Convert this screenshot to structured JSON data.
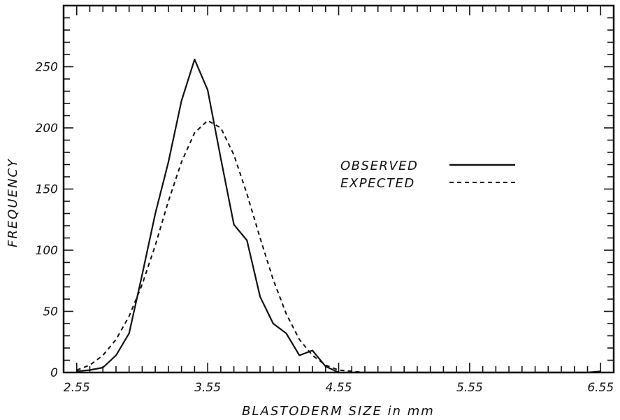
{
  "chart_data": {
    "type": "line",
    "title": "",
    "xlabel": "BLASTODERM SIZE  in mm",
    "ylabel": "FREQUENCY",
    "xlim": [
      2.45,
      6.65
    ],
    "ylim": [
      0,
      300
    ],
    "x_ticks": [
      2.55,
      3.55,
      4.55,
      5.55,
      6.55
    ],
    "x_tick_labels": [
      "2.55",
      "3.55",
      "4.55",
      "5.55",
      "6.55"
    ],
    "y_ticks": [
      0,
      50,
      100,
      150,
      200,
      250
    ],
    "y_tick_labels": [
      "0",
      "50",
      "100",
      "150",
      "200",
      "250"
    ],
    "x_minor_step": 0.1,
    "y_minor_step": 10,
    "grid": false,
    "legend_position": "right-middle",
    "series": [
      {
        "name": "OBSERVED",
        "style": "solid",
        "x": [
          2.55,
          2.65,
          2.75,
          2.85,
          2.95,
          3.05,
          3.15,
          3.25,
          3.35,
          3.45,
          3.55,
          3.65,
          3.75,
          3.85,
          3.95,
          4.05,
          4.15,
          4.25,
          4.35,
          4.45,
          4.55,
          4.65,
          4.75,
          4.85,
          4.95,
          5.05,
          5.15,
          5.25,
          5.35,
          5.45,
          5.55,
          5.65,
          5.75,
          5.85,
          5.95,
          6.05,
          6.15,
          6.25,
          6.35,
          6.45,
          6.55
        ],
        "y": [
          1,
          2,
          4,
          14,
          32,
          80,
          130,
          172,
          222,
          256,
          231,
          175,
          121,
          108,
          62,
          40,
          32,
          14,
          18,
          5,
          0,
          0,
          0,
          0,
          0,
          0,
          0,
          0,
          0,
          0,
          0,
          0,
          0,
          0,
          0,
          0,
          0,
          0,
          0,
          0,
          1
        ]
      },
      {
        "name": "EXPECTED",
        "style": "dashed",
        "x": [
          2.55,
          2.65,
          2.75,
          2.85,
          2.95,
          3.05,
          3.15,
          3.25,
          3.35,
          3.45,
          3.55,
          3.65,
          3.75,
          3.85,
          3.95,
          4.05,
          4.15,
          4.25,
          4.35,
          4.45,
          4.55,
          4.65,
          4.75,
          4.85,
          4.95,
          5.05,
          5.15,
          5.25,
          5.35,
          5.45,
          5.55
        ],
        "y": [
          2,
          6,
          14,
          27,
          46,
          72,
          104,
          140,
          172,
          196,
          206,
          200,
          178,
          146,
          110,
          76,
          48,
          27,
          14,
          6,
          2,
          1,
          0,
          0,
          0,
          0,
          0,
          0,
          0,
          0,
          0
        ]
      }
    ]
  },
  "colors": {
    "ink": "#111111",
    "background": "#ffffff"
  }
}
